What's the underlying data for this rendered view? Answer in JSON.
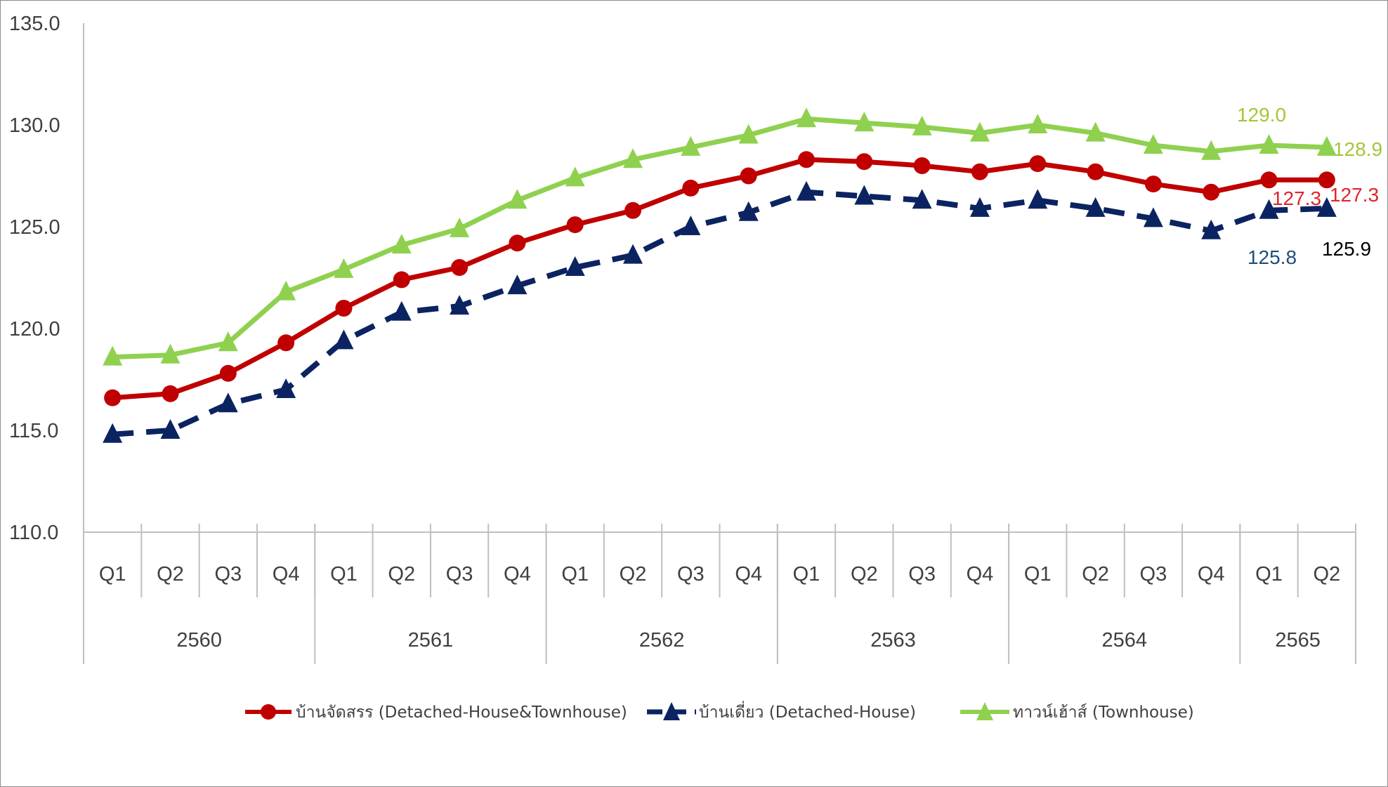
{
  "chart_data": {
    "type": "line",
    "title": "",
    "xlabel": "",
    "ylabel": "",
    "ylim": [
      110,
      135
    ],
    "yticks": [
      "110.0",
      "115.0",
      "120.0",
      "125.0",
      "130.0",
      "135.0"
    ],
    "grid": false,
    "legend_position": "bottom",
    "quarters": [
      "Q1",
      "Q2",
      "Q3",
      "Q4",
      "Q1",
      "Q2",
      "Q3",
      "Q4",
      "Q1",
      "Q2",
      "Q3",
      "Q4",
      "Q1",
      "Q2",
      "Q3",
      "Q4",
      "Q1",
      "Q2",
      "Q3",
      "Q4",
      "Q1",
      "Q2"
    ],
    "years": [
      {
        "label": "2560",
        "count": 4
      },
      {
        "label": "2561",
        "count": 4
      },
      {
        "label": "2562",
        "count": 4
      },
      {
        "label": "2563",
        "count": 4
      },
      {
        "label": "2564",
        "count": 4
      },
      {
        "label": "2565",
        "count": 2
      }
    ],
    "series": [
      {
        "name": "ทาวน์เฮ้าส์ (Townhouse)",
        "color": "#8fd14f",
        "marker": "triangle",
        "dash": "solid",
        "values": [
          118.6,
          118.7,
          119.3,
          121.8,
          122.9,
          124.1,
          124.9,
          126.3,
          127.4,
          128.3,
          128.9,
          129.5,
          130.3,
          130.1,
          129.9,
          129.6,
          130.0,
          129.6,
          129.0,
          128.7,
          129.0,
          128.9
        ]
      },
      {
        "name": "บ้านจัดสรร (Detached-House&Townhouse)",
        "color": "#c00000",
        "marker": "circle",
        "dash": "solid",
        "values": [
          116.6,
          116.8,
          117.8,
          119.3,
          121.0,
          122.4,
          123.0,
          124.2,
          125.1,
          125.8,
          126.9,
          127.5,
          128.3,
          128.2,
          128.0,
          127.7,
          128.1,
          127.7,
          127.1,
          126.7,
          127.3,
          127.3
        ]
      },
      {
        "name": "บ้านเดี่ยว (Detached-House)",
        "color": "#0b2461",
        "marker": "triangle",
        "dash": "dashed",
        "values": [
          114.8,
          115.0,
          116.3,
          117.0,
          119.4,
          120.8,
          121.1,
          122.1,
          123.0,
          123.6,
          125.0,
          125.7,
          126.7,
          126.5,
          126.3,
          125.9,
          126.3,
          125.9,
          125.4,
          124.8,
          125.8,
          125.9
        ]
      }
    ],
    "annotations": [
      {
        "text": "129.0",
        "color": "#a3c63a"
      },
      {
        "text": "128.9",
        "color": "#a3c63a"
      },
      {
        "text": "127.3",
        "color": "#e0242b"
      },
      {
        "text": "127.3",
        "color": "#e0242b"
      },
      {
        "text": "125.8",
        "color": "#1f4e79"
      },
      {
        "text": "125.9",
        "color": "#000000"
      }
    ]
  }
}
